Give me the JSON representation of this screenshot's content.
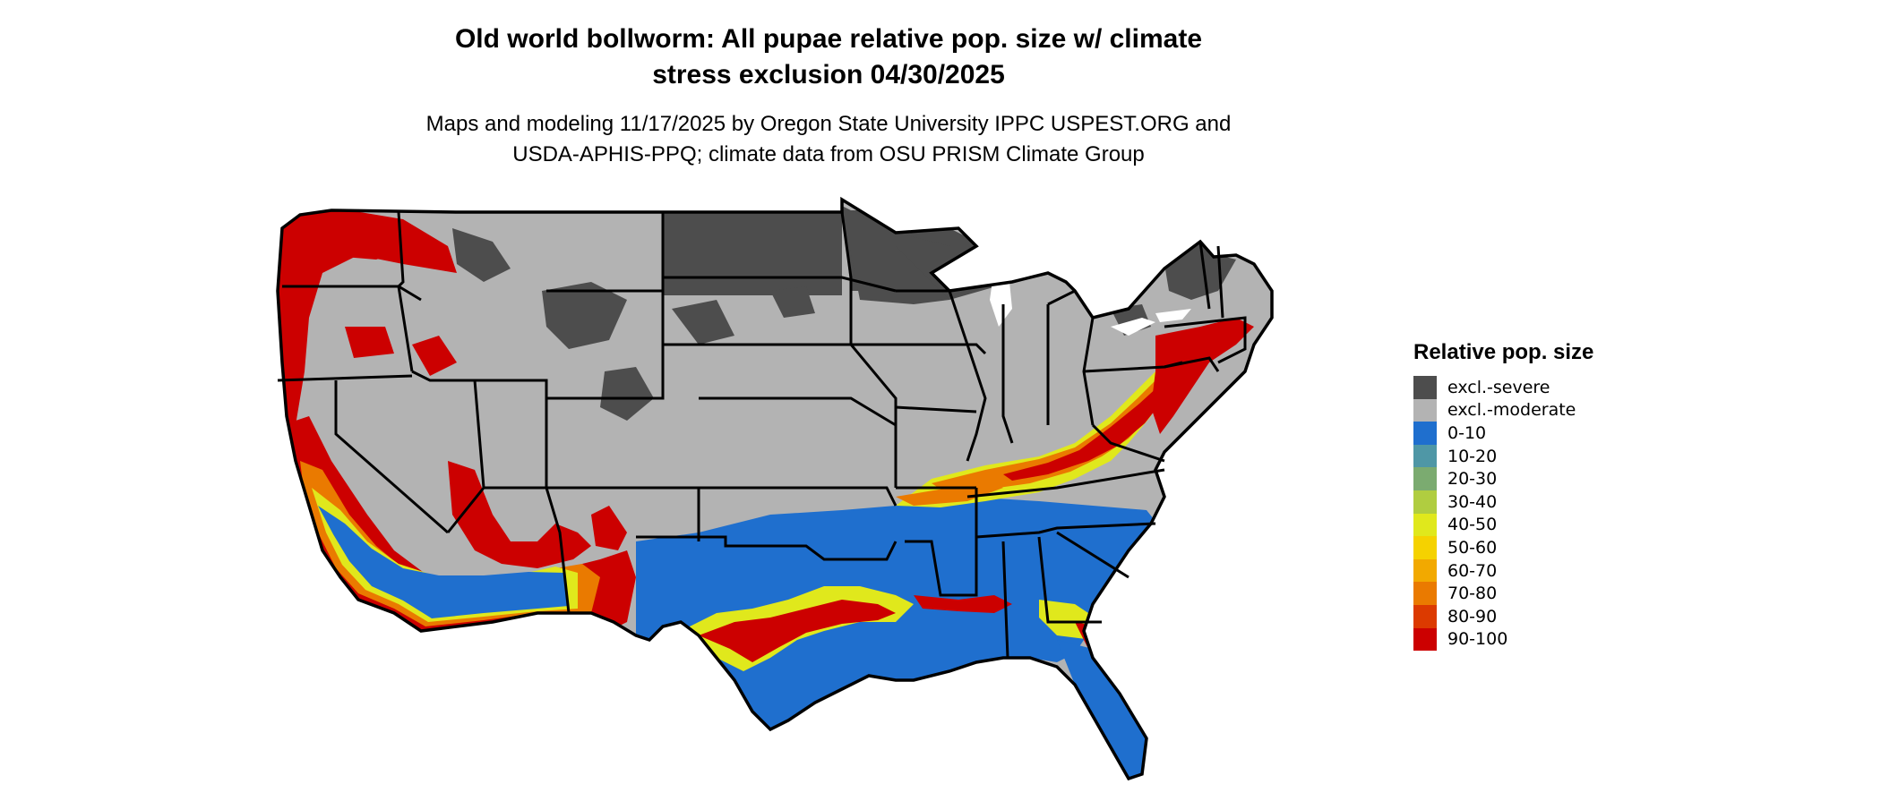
{
  "title_line1": "Old world bollworm: All pupae relative pop. size w/ climate",
  "title_line2": "stress exclusion 04/30/2025",
  "subtitle_line1": "Maps and modeling 11/17/2025 by Oregon State University IPPC USPEST.ORG and",
  "subtitle_line2": "USDA-APHIS-PPQ; climate data from OSU PRISM Climate Group",
  "legend": {
    "title": "Relative pop. size",
    "items": [
      {
        "label": "excl.-severe",
        "color": "#4d4d4d"
      },
      {
        "label": "excl.-moderate",
        "color": "#b3b3b3"
      },
      {
        "label": "0-10",
        "color": "#1f6fce"
      },
      {
        "label": "10-20",
        "color": "#4f97a6"
      },
      {
        "label": "20-30",
        "color": "#7bab70"
      },
      {
        "label": "30-40",
        "color": "#b0cd40"
      },
      {
        "label": "40-50",
        "color": "#e0e81c"
      },
      {
        "label": "50-60",
        "color": "#f5d200"
      },
      {
        "label": "60-70",
        "color": "#f2a900"
      },
      {
        "label": "70-80",
        "color": "#ea7a00"
      },
      {
        "label": "80-90",
        "color": "#dc3a00"
      },
      {
        "label": "90-100",
        "color": "#cc0000"
      }
    ]
  }
}
